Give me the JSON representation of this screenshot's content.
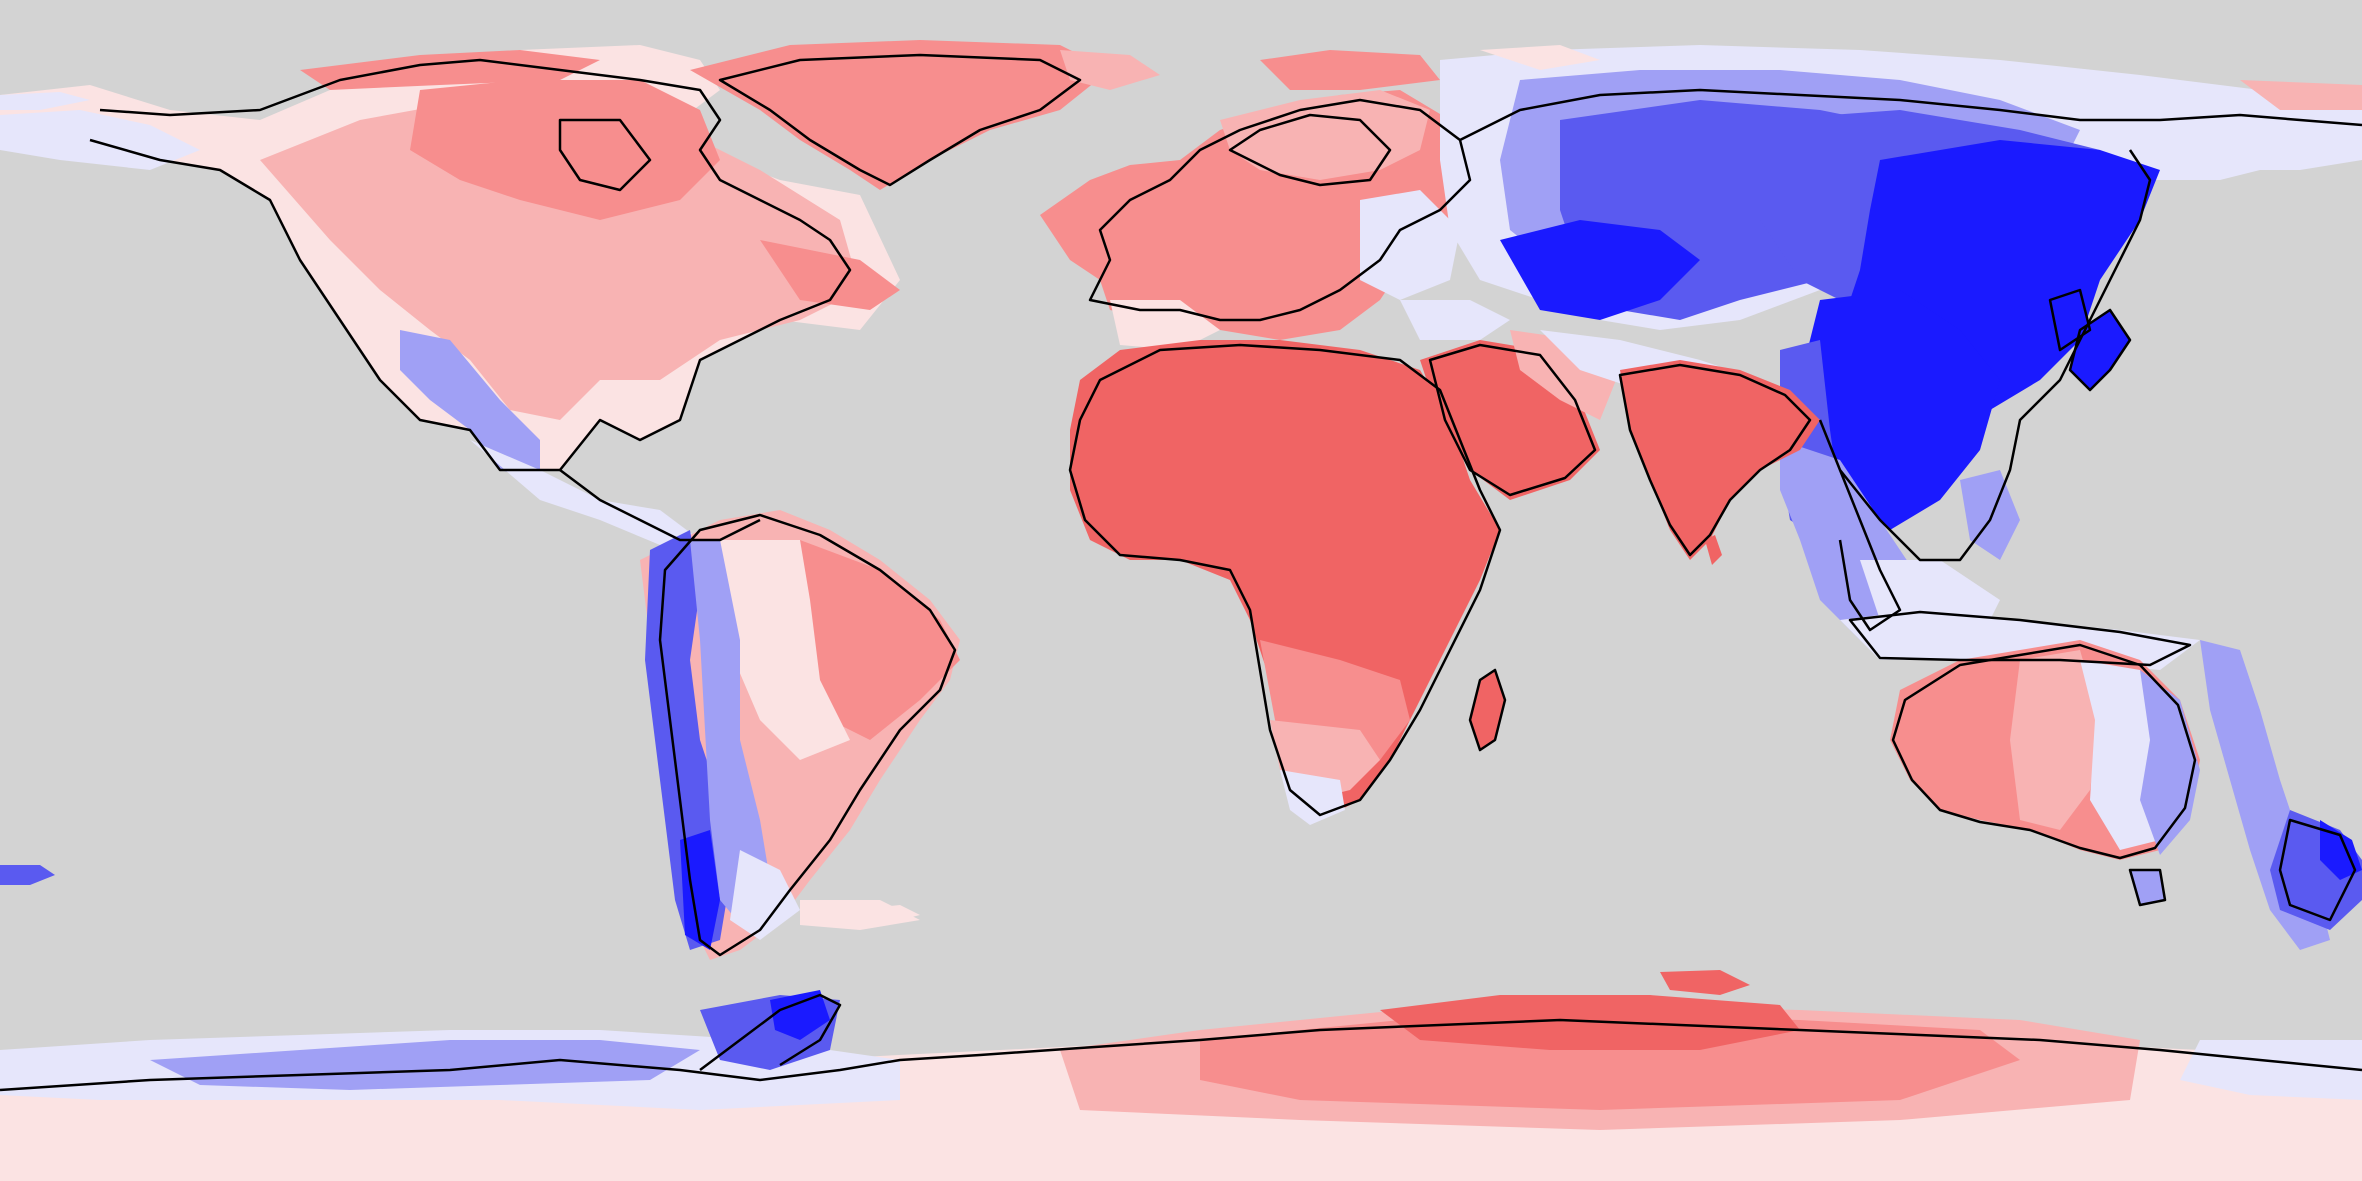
{
  "map": {
    "projection": "equirectangular",
    "extent": {
      "lon": [
        -180,
        180
      ],
      "lat": [
        -90,
        90
      ]
    },
    "ocean_color": "#d3d3d3",
    "coastline_color": "#000000",
    "diverging_palette": {
      "strong_blue": "#1a1aff",
      "blue": "#5a5af0",
      "light_blue": "#a0a0f5",
      "pale_blue": "#e6e6fb",
      "pale_red": "#fbe3e3",
      "light_red": "#f8b3b3",
      "red": "#f78e8e",
      "strong_red": "#f06464"
    },
    "regions": [
      {
        "name": "east-asia-anomaly",
        "color_class": "strong_blue",
        "lon_range": [
          95,
          140
        ],
        "lat_range": [
          18,
          50
        ]
      },
      {
        "name": "central-asia-anomaly",
        "color_class": "blue",
        "lon_range": [
          50,
          120
        ],
        "lat_range": [
          35,
          65
        ]
      },
      {
        "name": "africa-arabia-anomaly",
        "color_class": "strong_red",
        "lon_range": [
          -18,
          60
        ],
        "lat_range": [
          -35,
          38
        ]
      },
      {
        "name": "india-anomaly",
        "color_class": "strong_red",
        "lon_range": [
          68,
          92
        ],
        "lat_range": [
          6,
          32
        ]
      },
      {
        "name": "greenland-anomaly",
        "color_class": "red",
        "lon_range": [
          -75,
          -10
        ],
        "lat_range": [
          60,
          83
        ]
      },
      {
        "name": "east-antarctica-anomaly",
        "color_class": "red",
        "lon_range": [
          0,
          150
        ],
        "lat_range": [
          -85,
          -65
        ]
      },
      {
        "name": "west-antarctica-anomaly",
        "color_class": "blue",
        "lon_range": [
          -150,
          -55
        ],
        "lat_range": [
          -85,
          -62
        ]
      },
      {
        "name": "andes-anomaly",
        "color_class": "blue",
        "lon_range": [
          -78,
          -65
        ],
        "lat_range": [
          -55,
          10
        ]
      },
      {
        "name": "new-zealand-anomaly",
        "color_class": "blue",
        "lon_range": [
          165,
          180
        ],
        "lat_range": [
          -48,
          -34
        ]
      }
    ]
  }
}
